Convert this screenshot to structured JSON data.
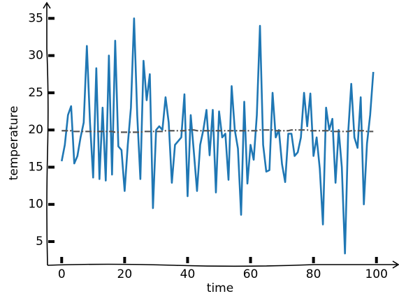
{
  "chart_data": {
    "type": "line",
    "x_label": "time",
    "y_label": "temperature",
    "x": [
      0,
      1,
      2,
      3,
      4,
      5,
      6,
      7,
      8,
      9,
      10,
      11,
      12,
      13,
      14,
      15,
      16,
      17,
      18,
      19,
      20,
      21,
      22,
      23,
      24,
      25,
      26,
      27,
      28,
      29,
      30,
      31,
      32,
      33,
      34,
      35,
      36,
      37,
      38,
      39,
      40,
      41,
      42,
      43,
      44,
      45,
      46,
      47,
      48,
      49,
      50,
      51,
      52,
      53,
      54,
      55,
      56,
      57,
      58,
      59,
      60,
      61,
      62,
      63,
      64,
      65,
      66,
      67,
      68,
      69,
      70,
      71,
      72,
      73,
      74,
      75,
      76,
      77,
      78,
      79,
      80,
      81,
      82,
      83,
      84,
      85,
      86,
      87,
      88,
      89,
      90,
      91,
      92,
      93,
      94,
      95,
      96,
      97,
      98,
      99
    ],
    "series": [
      {
        "color": "#1f77b4",
        "style": "solid",
        "values": [
          15.8,
          18,
          22,
          23.2,
          15.5,
          16.5,
          19,
          21,
          31.3,
          21,
          13.6,
          28.3,
          13.4,
          23,
          13.2,
          30,
          14,
          32,
          17.8,
          17.3,
          11.8,
          18,
          23,
          35,
          22,
          13.4,
          29.3,
          24,
          27.5,
          9.5,
          20,
          20.5,
          20,
          24.4,
          21,
          12.9,
          18,
          18.5,
          19,
          24.8,
          11.1,
          22,
          17,
          11.8,
          18,
          20,
          22.7,
          16.6,
          22.7,
          11.6,
          22.5,
          19,
          19.5,
          13.3,
          25.9,
          20,
          17.5,
          8.6,
          23.8,
          12.8,
          18,
          16,
          22,
          34,
          18,
          14.4,
          14.6,
          25,
          19,
          20,
          15.4,
          13,
          19.5,
          19.5,
          16.5,
          17,
          19,
          25,
          20.5,
          24.9,
          16.5,
          19,
          14.8,
          7.3,
          23,
          20,
          21.5,
          12.9,
          20,
          15,
          3.4,
          19.5,
          26.2,
          19,
          17.6,
          24.4,
          10,
          18.2,
          22,
          27.8
        ]
      },
      {
        "color": "#555555",
        "style": "dashdot",
        "values": [
          19.9,
          19.9,
          19.9,
          19.9,
          19.8,
          19.8,
          19.8,
          19.8,
          19.8,
          19.8,
          19.8,
          19.8,
          19.8,
          19.8,
          19.8,
          19.8,
          19.8,
          19.7,
          19.7,
          19.7,
          19.7,
          19.7,
          19.7,
          19.7,
          19.7,
          19.7,
          19.8,
          19.8,
          19.8,
          19.8,
          19.8,
          19.8,
          19.8,
          19.9,
          19.9,
          19.9,
          19.9,
          19.9,
          19.9,
          19.9,
          20,
          20,
          20,
          19.9,
          19.9,
          19.9,
          19.9,
          19.9,
          19.9,
          19.9,
          19.9,
          19.9,
          19.9,
          19.9,
          19.9,
          19.9,
          19.9,
          19.9,
          19.9,
          19.9,
          19.9,
          19.9,
          19.9,
          20,
          20,
          20,
          20,
          20,
          19.9,
          19.9,
          19.9,
          19.9,
          19.9,
          20,
          20,
          20,
          20,
          20,
          20,
          19.9,
          19.9,
          19.9,
          19.9,
          19.9,
          19.9,
          19.9,
          19.8,
          19.8,
          19.8,
          19.8,
          19.8,
          19.8,
          19.9,
          19.9,
          19.9,
          19.9,
          19.9,
          19.8,
          19.8,
          19.8
        ]
      }
    ],
    "xlim": [
      -4.5,
      106.5
    ],
    "ylim": [
      2,
      37
    ],
    "xticks": [
      0,
      20,
      40,
      60,
      80,
      100
    ],
    "yticks": [
      5,
      10,
      15,
      20,
      25,
      30,
      35
    ]
  }
}
